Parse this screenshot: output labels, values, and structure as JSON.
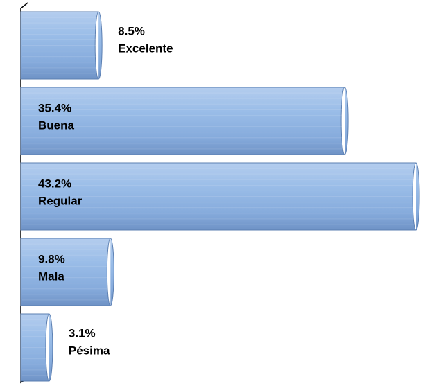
{
  "chart_data": {
    "type": "bar",
    "orientation": "horizontal",
    "categories": [
      "Excelente",
      "Buena",
      "Regular",
      "Mala",
      "Pésima"
    ],
    "values": [
      8.5,
      35.4,
      43.2,
      9.8,
      3.1
    ],
    "value_labels": [
      "8.5%",
      "35.4%",
      "43.2%",
      "9.8%",
      "3.1%"
    ],
    "color": "#8db3e2"
  }
}
